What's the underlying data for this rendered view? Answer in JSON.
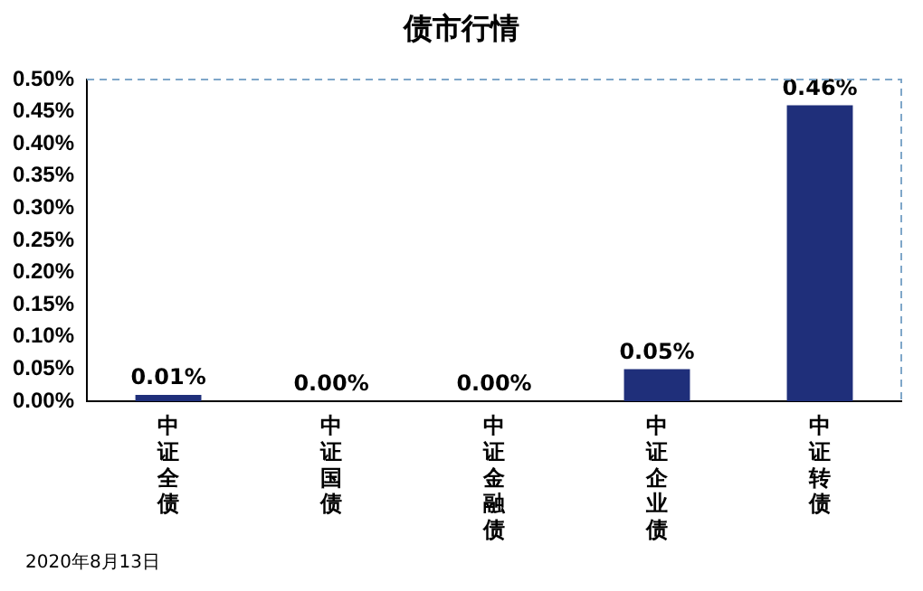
{
  "chart_data": {
    "type": "bar",
    "title": "债市行情",
    "categories": [
      "中证全债",
      "中证国债",
      "中证金融债",
      "中证企业债",
      "中证转债"
    ],
    "values": [
      0.01,
      0.0,
      0.0,
      0.05,
      0.46
    ],
    "value_labels": [
      "0.01%",
      "0.00%",
      "0.00%",
      "0.05%",
      "0.46%"
    ],
    "color": "#1f2f7a",
    "ylim": [
      0,
      0.5
    ],
    "yticks": [
      {
        "value": 0,
        "label": "0.00%"
      },
      {
        "value": 0.05,
        "label": "0.05%"
      },
      {
        "value": 0.1,
        "label": "0.10%"
      },
      {
        "value": 0.15,
        "label": "0.15%"
      },
      {
        "value": 0.2,
        "label": "0.20%"
      },
      {
        "value": 0.25,
        "label": "0.25%"
      },
      {
        "value": 0.3,
        "label": "0.30%"
      },
      {
        "value": 0.35,
        "label": "0.35%"
      },
      {
        "value": 0.4,
        "label": "0.40%"
      },
      {
        "value": 0.45,
        "label": "0.45%"
      },
      {
        "value": 0.5,
        "label": "0.50%"
      }
    ],
    "grid": false,
    "legend": false,
    "annotations": [
      "2020年8月13日"
    ]
  }
}
